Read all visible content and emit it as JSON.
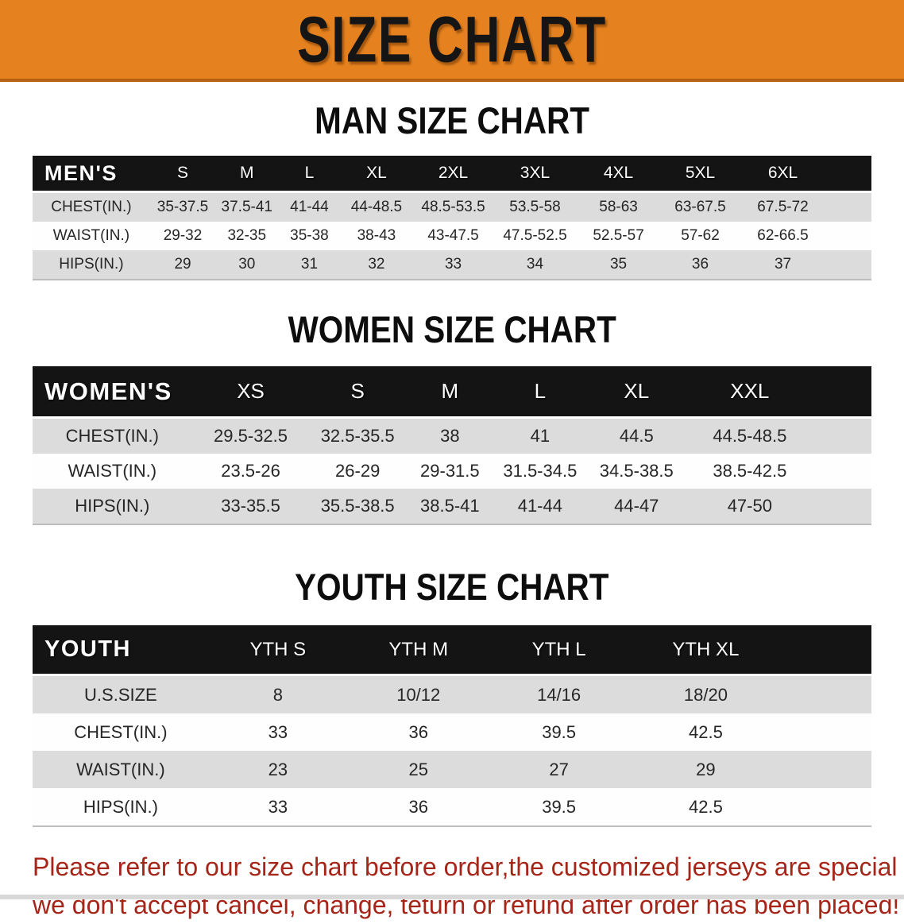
{
  "banner": {
    "title": "SIZE CHART"
  },
  "sections": [
    {
      "heading": "MAN SIZE CHART",
      "table": {
        "label": "MEN'S",
        "columns": [
          "S",
          "M",
          "L",
          "XL",
          "2XL",
          "3XL",
          "4XL",
          "5XL",
          "6XL"
        ],
        "rows": [
          {
            "label": "CHEST(IN.)",
            "values": [
              "35-37.5",
              "37.5-41",
              "41-44",
              "44-48.5",
              "48.5-53.5",
              "53.5-58",
              "58-63",
              "63-67.5",
              "67.5-72"
            ]
          },
          {
            "label": "WAIST(IN.)",
            "values": [
              "29-32",
              "32-35",
              "35-38",
              "38-43",
              "43-47.5",
              "47.5-52.5",
              "52.5-57",
              "57-62",
              "62-66.5"
            ]
          },
          {
            "label": "HIPS(IN.)",
            "values": [
              "29",
              "30",
              "31",
              "32",
              "33",
              "34",
              "35",
              "36",
              "37"
            ]
          }
        ]
      }
    },
    {
      "heading": "WOMEN SIZE CHART",
      "table": {
        "label": "WOMEN'S",
        "columns": [
          "XS",
          "S",
          "M",
          "L",
          "XL",
          "XXL"
        ],
        "rows": [
          {
            "label": "CHEST(IN.)",
            "values": [
              "29.5-32.5",
              "32.5-35.5",
              "38",
              "41",
              "44.5",
              "44.5-48.5"
            ]
          },
          {
            "label": "WAIST(IN.)",
            "values": [
              "23.5-26",
              "26-29",
              "29-31.5",
              "31.5-34.5",
              "34.5-38.5",
              "38.5-42.5"
            ]
          },
          {
            "label": "HIPS(IN.)",
            "values": [
              "33-35.5",
              "35.5-38.5",
              "38.5-41",
              "41-44",
              "44-47",
              "47-50"
            ]
          }
        ]
      }
    },
    {
      "heading": "YOUTH SIZE CHART",
      "table": {
        "label": "YOUTH",
        "columns": [
          "YTH S",
          "YTH M",
          "YTH L",
          "YTH XL"
        ],
        "rows": [
          {
            "label": "U.S.SIZE",
            "values": [
              "8",
              "10/12",
              "14/16",
              "18/20"
            ]
          },
          {
            "label": "CHEST(IN.)",
            "values": [
              "33",
              "36",
              "39.5",
              "42.5"
            ]
          },
          {
            "label": "WAIST(IN.)",
            "values": [
              "23",
              "25",
              "27",
              "29"
            ]
          },
          {
            "label": "HIPS(IN.)",
            "values": [
              "33",
              "36",
              "39.5",
              "42.5"
            ]
          }
        ]
      }
    }
  ],
  "disclaimer": {
    "line1": "Please refer to our size chart before order,the customized jerseys are special products,",
    "line2": "we don't accept cancel, change, teturn or refund after order has been placed!"
  },
  "colors": {
    "banner_bg": "#E5821F",
    "banner_border": "#B55F13",
    "title_color": "#151515",
    "header_bar": "#141414",
    "row_gray": "#DCDCDC",
    "disclaimer_red": "#A62519"
  }
}
